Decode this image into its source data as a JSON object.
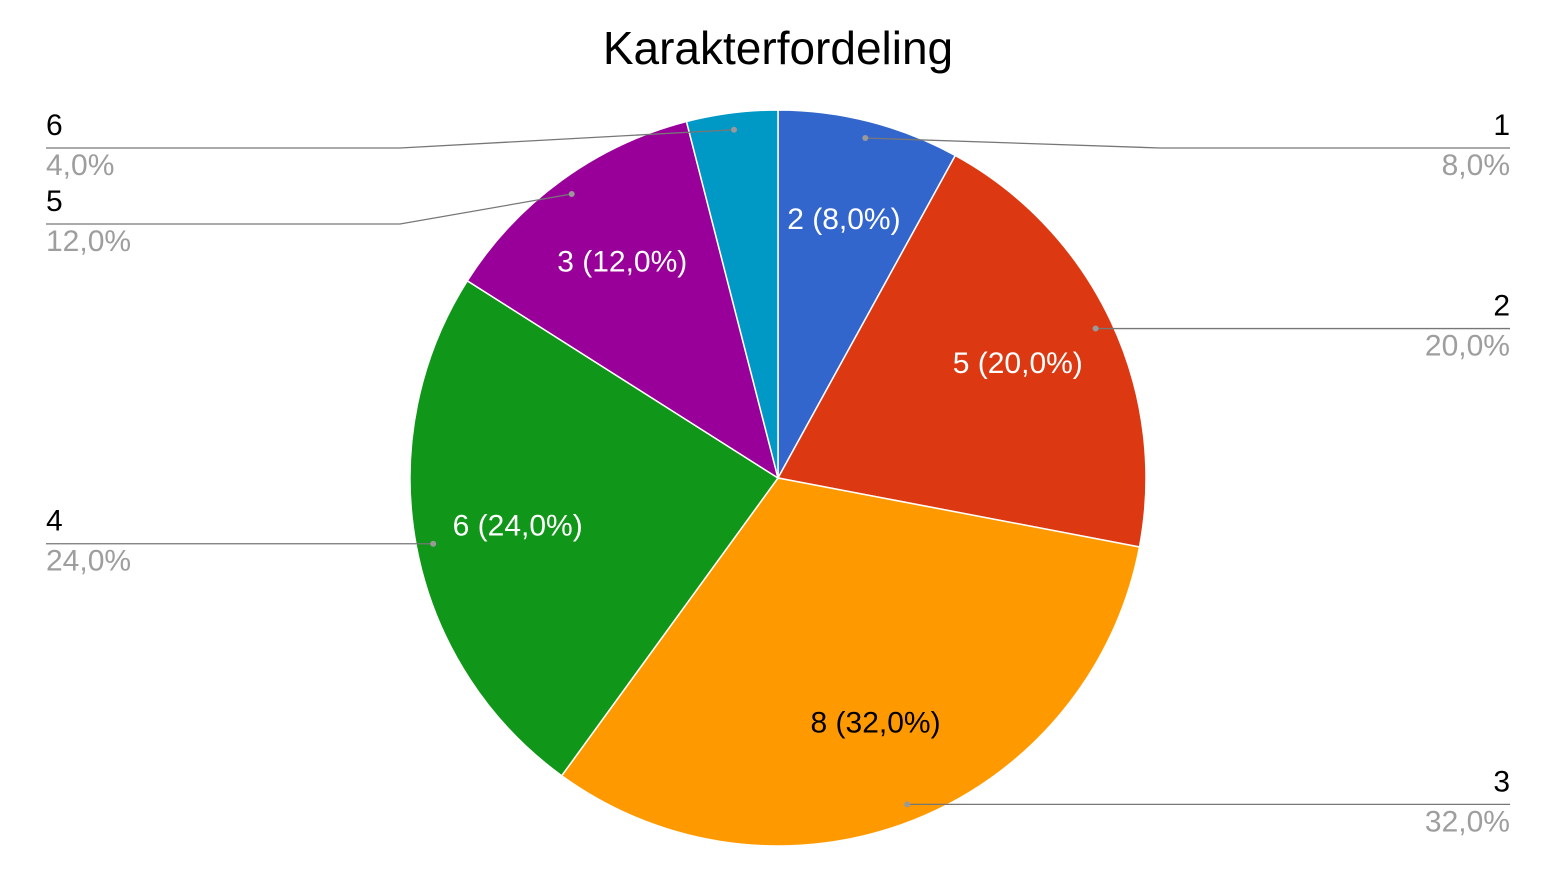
{
  "chart_data": {
    "type": "pie",
    "title": "Karakterfordeling",
    "categories": [
      "1",
      "2",
      "3",
      "4",
      "5",
      "6"
    ],
    "values": [
      2,
      5,
      8,
      6,
      3,
      1
    ],
    "value_labels": [
      "2 (8,0%)",
      "5 (20,0%)",
      "8 (32,0%)",
      "6 (24,0%)",
      "3 (12,0%)",
      null
    ],
    "percent_labels": [
      "8,0%",
      "20,0%",
      "32,0%",
      "24,0%",
      "12,0%",
      "4,0%"
    ],
    "colors": [
      "#3366cc",
      "#dc3912",
      "#ff9900",
      "#109618",
      "#990099",
      "#0099c6"
    ],
    "value_label_colors": [
      "#ffffff",
      "#ffffff",
      "#000000",
      "#ffffff",
      "#ffffff",
      "#ffffff"
    ]
  }
}
